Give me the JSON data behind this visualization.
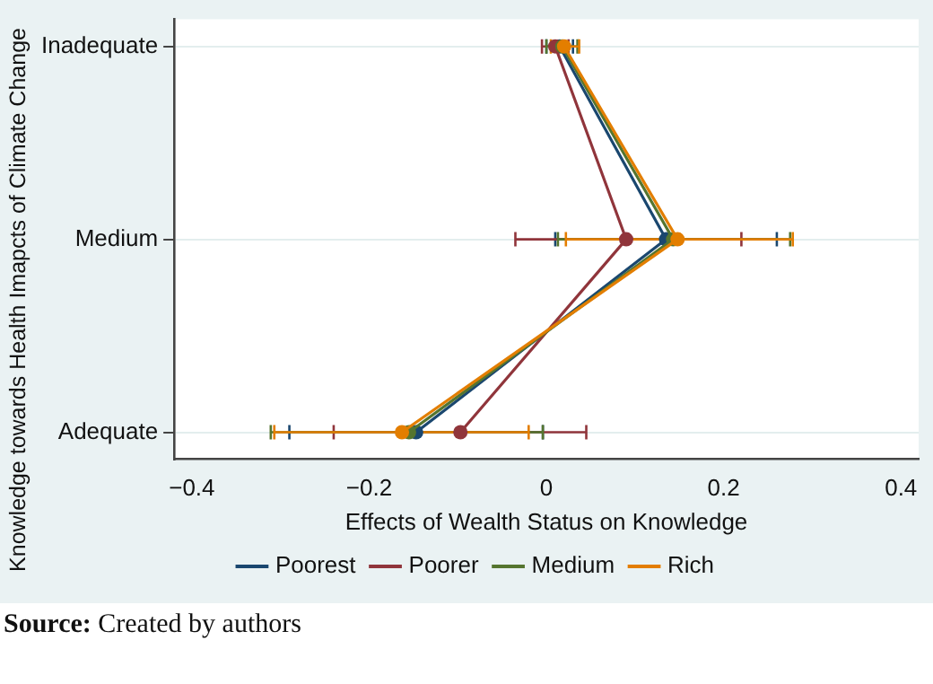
{
  "chart_data": {
    "type": "line",
    "xlabel": "Effects of Wealth Status on Knowledge",
    "ylabel": "Knowledge towards Health Imapcts of Climate Change",
    "categories": [
      "Inadequate",
      "Medium",
      "Adequate"
    ],
    "orientation": "horizontal",
    "xlim": [
      -0.42,
      0.42
    ],
    "xticks": [
      {
        "value": -0.4,
        "label": "−0.4"
      },
      {
        "value": -0.2,
        "label": "−0.2"
      },
      0,
      0.2,
      0.4
    ],
    "series": [
      {
        "name": "Poorest",
        "color": "#1a476f",
        "values": [
          0.015,
          0.135,
          -0.147
        ],
        "errors": [
          [
            0.0,
            0.03
          ],
          [
            0.01,
            0.26
          ],
          [
            -0.29,
            -0.004
          ]
        ]
      },
      {
        "name": "Poorer",
        "color": "#90353b",
        "values": [
          0.01,
          0.09,
          -0.097
        ],
        "errors": [
          [
            -0.005,
            0.025
          ],
          [
            -0.035,
            0.22
          ],
          [
            -0.24,
            0.045
          ]
        ]
      },
      {
        "name": "Medium",
        "color": "#55752f",
        "values": [
          0.018,
          0.143,
          -0.155
        ],
        "errors": [
          [
            0.0,
            0.035
          ],
          [
            0.013,
            0.275
          ],
          [
            -0.311,
            -0.004
          ]
        ]
      },
      {
        "name": "Rich",
        "color": "#e37e00",
        "values": [
          0.02,
          0.148,
          -0.163
        ],
        "errors": [
          [
            0.005,
            0.037
          ],
          [
            0.022,
            0.278
          ],
          [
            -0.307,
            -0.02
          ]
        ]
      }
    ],
    "marker": "circle",
    "grid": "y",
    "legend": "bottom",
    "annotations": [
      "Source: Created by authors"
    ]
  }
}
